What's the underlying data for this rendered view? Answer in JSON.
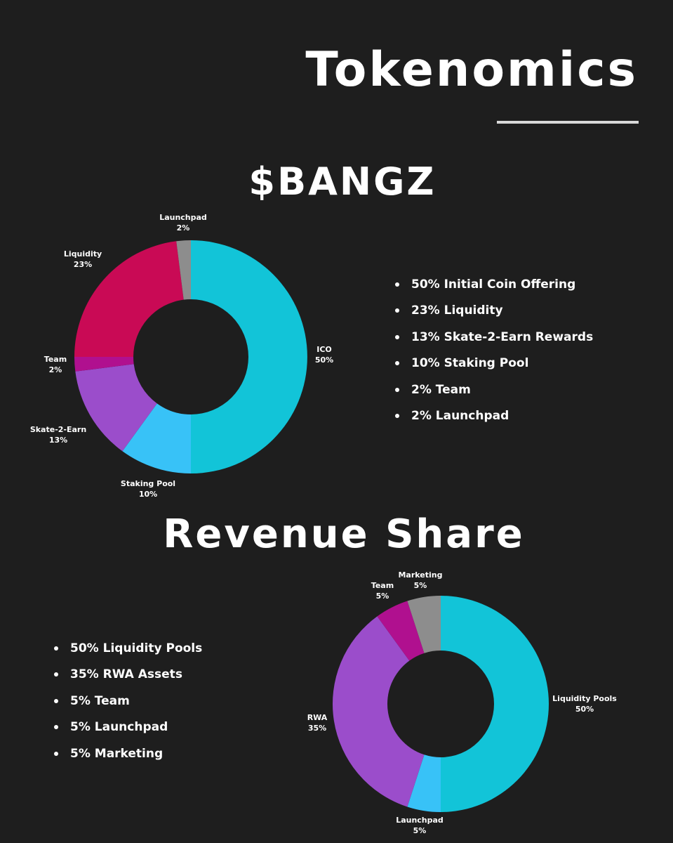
{
  "page": {
    "title": "Tokenomics"
  },
  "chart_data": [
    {
      "type": "pie",
      "title": "$BANGZ",
      "hole": true,
      "slices": [
        {
          "label": "ICO",
          "value": 50,
          "value_label": "50%",
          "color": "#12c4d8"
        },
        {
          "label": "Staking Pool",
          "value": 10,
          "value_label": "10%",
          "color": "#38c2f7"
        },
        {
          "label": "Skate-2-Earn",
          "value": 13,
          "value_label": "13%",
          "color": "#9b4dcb"
        },
        {
          "label": "Team",
          "value": 2,
          "value_label": "2%",
          "color": "#b0108f"
        },
        {
          "label": "Liquidity",
          "value": 23,
          "value_label": "23%",
          "color": "#c90a55"
        },
        {
          "label": "Launchpad",
          "value": 2,
          "value_label": "2%",
          "color": "#8d8d8d"
        }
      ],
      "legend": [
        "50% Initial Coin Offering",
        "23% Liquidity",
        "13% Skate-2-Earn Rewards",
        "10% Staking Pool",
        "2% Team",
        "2% Launchpad"
      ]
    },
    {
      "type": "pie",
      "title": "Revenue Share",
      "hole": true,
      "slices": [
        {
          "label": "Liquidity Pools",
          "value": 50,
          "value_label": "50%",
          "color": "#12c4d8"
        },
        {
          "label": "Launchpad",
          "value": 5,
          "value_label": "5%",
          "color": "#38c2f7"
        },
        {
          "label": "RWA",
          "value": 35,
          "value_label": "35%",
          "color": "#9b4dcb"
        },
        {
          "label": "Team",
          "value": 5,
          "value_label": "5%",
          "color": "#b0108f"
        },
        {
          "label": "Marketing",
          "value": 5,
          "value_label": "5%",
          "color": "#8d8d8d"
        }
      ],
      "legend": [
        "50% Liquidity Pools",
        "35% RWA Assets",
        "5% Team",
        "5% Launchpad",
        "5% Marketing"
      ]
    }
  ]
}
